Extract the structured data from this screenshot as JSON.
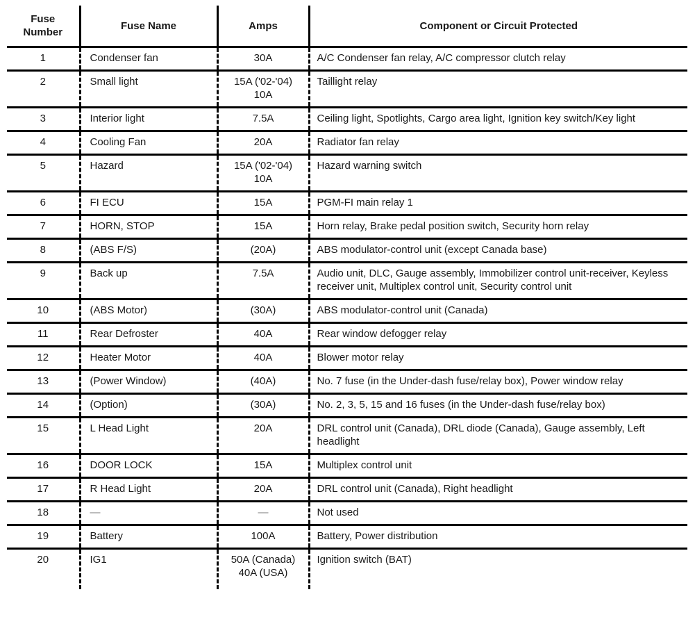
{
  "table": {
    "columns": [
      "Fuse Number",
      "Fuse Name",
      "Amps",
      "Component or Circuit Protected"
    ],
    "rows": [
      {
        "number": "1",
        "name": "Condenser fan",
        "amps": [
          "30A"
        ],
        "component": "A/C Condenser fan relay, A/C compressor clutch relay"
      },
      {
        "number": "2",
        "name": "Small light",
        "amps": [
          "15A ('02-'04)",
          "10A"
        ],
        "component": "Taillight relay"
      },
      {
        "number": "3",
        "name": "Interior light",
        "amps": [
          "7.5A"
        ],
        "component": "Ceiling light, Spotlights, Cargo area light, Ignition key switch/Key light"
      },
      {
        "number": "4",
        "name": "Cooling Fan",
        "amps": [
          "20A"
        ],
        "component": "Radiator fan relay"
      },
      {
        "number": "5",
        "name": "Hazard",
        "amps": [
          "15A ('02-'04)",
          "10A"
        ],
        "component": "Hazard warning switch"
      },
      {
        "number": "6",
        "name": "FI ECU",
        "amps": [
          "15A"
        ],
        "component": "PGM-FI main relay 1"
      },
      {
        "number": "7",
        "name": "HORN, STOP",
        "amps": [
          "15A"
        ],
        "component": "Horn relay, Brake pedal position switch, Security horn relay"
      },
      {
        "number": "8",
        "name": "(ABS F/S)",
        "amps": [
          "(20A)"
        ],
        "component": "ABS modulator-control unit (except Canada base)"
      },
      {
        "number": "9",
        "name": "Back up",
        "amps": [
          "7.5A"
        ],
        "component": "Audio unit, DLC, Gauge assembly, Immobilizer control unit-receiver, Keyless receiver unit, Multiplex control unit, Security control unit"
      },
      {
        "number": "10",
        "name": "(ABS Motor)",
        "amps": [
          "(30A)"
        ],
        "component": "ABS modulator-control unit (Canada)"
      },
      {
        "number": "11",
        "name": "Rear Defroster",
        "amps": [
          "40A"
        ],
        "component": "Rear window defogger relay"
      },
      {
        "number": "12",
        "name": "Heater Motor",
        "amps": [
          "40A"
        ],
        "component": "Blower motor relay"
      },
      {
        "number": "13",
        "name": "(Power Window)",
        "amps": [
          "(40A)"
        ],
        "component": "No. 7 fuse (in the Under-dash fuse/relay box), Power window relay"
      },
      {
        "number": "14",
        "name": "(Option)",
        "amps": [
          "(30A)"
        ],
        "component": "No. 2, 3, 5, 15 and 16 fuses (in the Under-dash fuse/relay box)"
      },
      {
        "number": "15",
        "name": "L Head Light",
        "amps": [
          "20A"
        ],
        "component": "DRL control unit (Canada), DRL diode (Canada), Gauge assembly, Left headlight"
      },
      {
        "number": "16",
        "name": "DOOR LOCK",
        "amps": [
          "15A"
        ],
        "component": "Multiplex control unit"
      },
      {
        "number": "17",
        "name": "R Head Light",
        "amps": [
          "20A"
        ],
        "component": "DRL control unit (Canada), Right headlight"
      },
      {
        "number": "18",
        "name": "—",
        "amps": [
          "—"
        ],
        "component": "Not used"
      },
      {
        "number": "19",
        "name": "Battery",
        "amps": [
          "100A"
        ],
        "component": "Battery, Power distribution"
      },
      {
        "number": "20",
        "name": "IG1",
        "amps": [
          "50A (Canada)",
          "40A (USA)"
        ],
        "component": "Ignition switch (BAT)"
      }
    ]
  },
  "colors": {
    "line": "#000000",
    "text": "#1a1a1a",
    "muted_dash": "#787878",
    "background": "#ffffff"
  }
}
